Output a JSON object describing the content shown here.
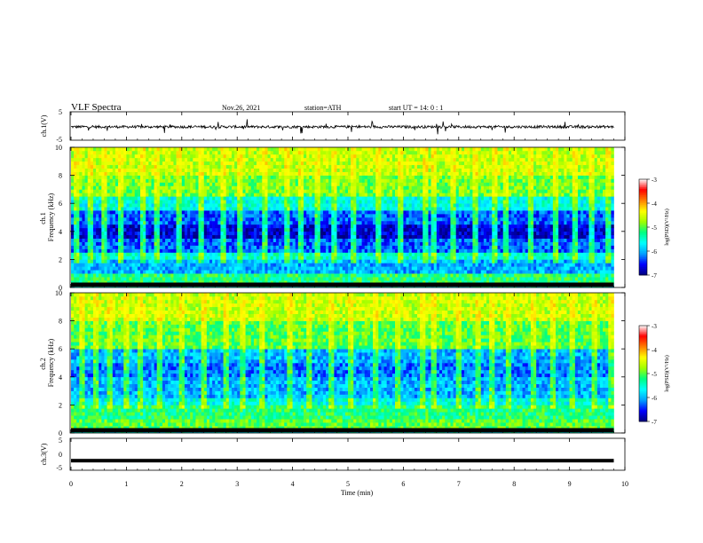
{
  "header": {
    "title": "VLF  Spectra",
    "date": "Nov.26, 2021",
    "station": "station=ATH",
    "start": "start  UT  =   14: 0   : 1"
  },
  "colors": {
    "background": "#ffffff",
    "frame": "#000000",
    "waveform": "#000000",
    "colormap": [
      "#00007f",
      "#0000ff",
      "#00a0ff",
      "#00ffff",
      "#00ff80",
      "#a0ff00",
      "#ffff00",
      "#ff8000",
      "#ff0000",
      "#ffffff"
    ]
  },
  "chart_data": [
    {
      "type": "line",
      "name": "ch1-waveform",
      "ylabel": "ch.1(V)",
      "ylim": [
        -5,
        5
      ],
      "yticks": [
        "5",
        "-5"
      ],
      "x_unit": "min",
      "xlim": [
        0,
        10
      ],
      "data_end_min": 9.8,
      "baseline_v": -0.3,
      "spike_amplitude_v": 2.5,
      "grid": false
    },
    {
      "type": "heatmap",
      "name": "ch1-spectrogram",
      "ylabel": "ch.1\nFrequency (kHz)",
      "ylim": [
        0,
        10
      ],
      "yticks": [
        "0",
        "2",
        "4",
        "6",
        "8",
        "10"
      ],
      "xlim": [
        0,
        10
      ],
      "data_end_min": 9.8,
      "colorbar": {
        "label": "log(PSD)(V²/Hz)",
        "range": [
          -7,
          -3
        ],
        "ticks": [
          "-3",
          "-4",
          "-5",
          "-6",
          "-7"
        ]
      },
      "band_levels": [
        {
          "f": [
            0.0,
            0.3
          ],
          "level": -5.6
        },
        {
          "f": [
            0.3,
            1.0
          ],
          "level": -5.2
        },
        {
          "f": [
            1.0,
            2.0
          ],
          "level": -6.0
        },
        {
          "f": [
            2.0,
            2.4
          ],
          "level": -5.5
        },
        {
          "f": [
            2.4,
            3.4
          ],
          "level": -6.3
        },
        {
          "f": [
            3.4,
            4.6
          ],
          "level": -6.7
        },
        {
          "f": [
            4.6,
            5.4
          ],
          "level": -6.3
        },
        {
          "f": [
            5.4,
            6.4
          ],
          "level": -5.6
        },
        {
          "f": [
            6.4,
            8.0
          ],
          "level": -4.9
        },
        {
          "f": [
            8.0,
            10.0
          ],
          "level": -4.6
        }
      ],
      "spike_times_min": [
        0.1,
        0.35,
        0.6,
        0.9,
        1.3,
        1.55,
        1.95,
        2.35,
        2.75,
        3.05,
        3.5,
        3.9,
        4.15,
        4.45,
        4.75,
        5.1,
        5.55,
        5.95,
        6.4,
        6.55,
        6.9,
        7.3,
        7.65,
        7.85,
        8.3,
        8.75,
        9.1,
        9.4,
        9.7
      ],
      "spike_peak_level": -4.0
    },
    {
      "type": "heatmap",
      "name": "ch2-spectrogram",
      "ylabel": "ch.2\nFrequency (kHz)",
      "ylim": [
        0,
        10
      ],
      "yticks": [
        "0",
        "2",
        "4",
        "6",
        "8",
        "10"
      ],
      "xlim": [
        0,
        10
      ],
      "data_end_min": 9.8,
      "colorbar": {
        "label": "log(PSD)(V²/Hz)",
        "range": [
          -7,
          -3
        ],
        "ticks": [
          "-3",
          "-4",
          "-5",
          "-6",
          "-7"
        ]
      },
      "band_levels": [
        {
          "f": [
            0.0,
            0.3
          ],
          "level": -5.6
        },
        {
          "f": [
            0.3,
            1.0
          ],
          "level": -5.0
        },
        {
          "f": [
            1.0,
            2.0
          ],
          "level": -5.2
        },
        {
          "f": [
            2.0,
            2.6
          ],
          "level": -5.6
        },
        {
          "f": [
            2.6,
            4.0
          ],
          "level": -6.0
        },
        {
          "f": [
            4.0,
            5.0
          ],
          "level": -6.2
        },
        {
          "f": [
            5.0,
            6.0
          ],
          "level": -6.0
        },
        {
          "f": [
            6.0,
            8.0
          ],
          "level": -5.0
        },
        {
          "f": [
            8.0,
            10.0
          ],
          "level": -4.6
        }
      ],
      "spike_times_min": [
        0.2,
        0.45,
        0.7,
        1.0,
        1.25,
        1.6,
        2.0,
        2.4,
        2.8,
        3.1,
        3.45,
        3.95,
        4.3,
        4.7,
        5.05,
        5.5,
        5.9,
        6.35,
        6.55,
        7.0,
        7.35,
        7.6,
        7.9,
        8.35,
        8.7,
        9.05,
        9.45,
        9.75
      ],
      "spike_peak_level": -4.0
    },
    {
      "type": "line",
      "name": "ch3-waveform",
      "ylabel": "ch.3(V)",
      "ylim": [
        -5,
        5
      ],
      "yticks": [
        "5",
        "0",
        "-5"
      ],
      "xlim": [
        0,
        10
      ],
      "data_end_min": 9.8,
      "baseline_v": -2.0,
      "grid": false
    }
  ],
  "xaxis": {
    "label": "Time  (min)",
    "ticks": [
      "0",
      "1",
      "2",
      "3",
      "4",
      "5",
      "6",
      "7",
      "8",
      "9",
      "10"
    ]
  }
}
